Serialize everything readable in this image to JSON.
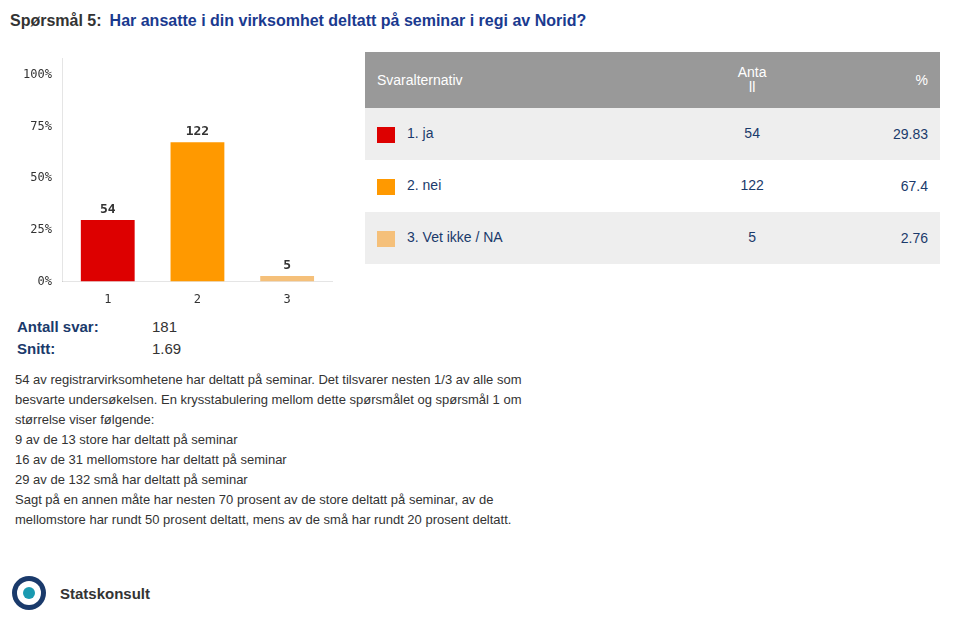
{
  "chart_data": {
    "type": "bar",
    "title": "Spørsmål 5:",
    "subtitle": "Har ansatte i din virksomhet deltatt på seminar i regi av Norid?",
    "categories": [
      "1",
      "2",
      "3"
    ],
    "values": [
      0.2983425414364641,
      0.6740331491712707,
      0.027624309392265192
    ],
    "counts": [
      54,
      122,
      5
    ],
    "colors": [
      "#dd0000",
      "#ff9900",
      "#f5c07a"
    ],
    "ylim": [
      0,
      1.08
    ],
    "yticks": [
      {
        "value": 0,
        "label": "0%"
      },
      {
        "value": 0.25,
        "label": "25%"
      },
      {
        "value": 0.5,
        "label": "50%"
      },
      {
        "value": 0.75,
        "label": "75%"
      },
      {
        "value": 1.0,
        "label": "100%"
      }
    ],
    "grid": false,
    "table": {
      "header": [
        "Svaralternativ",
        "Anta\nll",
        "%"
      ],
      "rows": [
        [
          "1. ja",
          "54",
          "29.83"
        ],
        [
          "2. nei",
          "122",
          "67.4"
        ],
        [
          "3. Vet ikke / NA",
          "5",
          "2.76"
        ]
      ],
      "colors": [
        "#dd0000",
        "#ff9900",
        "#f5c07a"
      ]
    },
    "stats": [
      {
        "label": "Antall svar:",
        "value": "181"
      },
      {
        "label": "Snitt:",
        "value": "1.69"
      }
    ],
    "body_text": "54 av registrarvirksomhetene har deltatt på seminar. Det tilsvarer nesten 1/3 av alle som\nbesvarte undersøkelsen. En krysstabulering mellom dette spørsmålet og spørsmål 1 om\nstørrelse viser følgende:\n9 av de 13 store har deltatt på seminar\n16 av de 31 mellomstore har deltatt på seminar\n29 av de 132 små har deltatt på seminar\nSagt på en annen måte har nesten 70 prosent av de store deltatt på seminar, av de\nmellomstore har rundt 50 prosent deltatt, mens av de små har rundt 20 prosent deltatt.",
    "logo_text": "Statskonsult"
  }
}
